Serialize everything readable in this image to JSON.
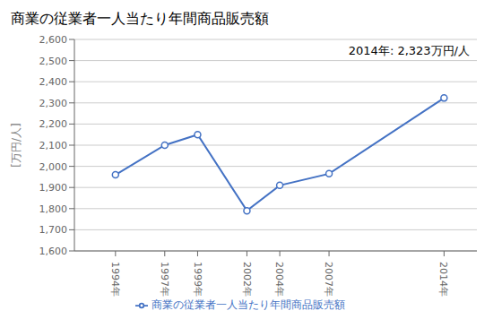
{
  "chart_data": {
    "type": "line",
    "title": "商業の従業者一人当たり年間商品販売額",
    "ylabel": "[万円/人]",
    "annotation": "2014年: 2,323万円/人",
    "x": [
      1994,
      1997,
      1999,
      2002,
      2004,
      2007,
      2014
    ],
    "series": [
      {
        "name": "商業の従業者一人当たり年間商品販売額",
        "color": "#4472C4",
        "marker": "o",
        "values": [
          1960,
          2100,
          2150,
          1790,
          1910,
          1965,
          2323
        ]
      }
    ],
    "xlim": [
      1991.5,
      2016
    ],
    "xticks": [
      {
        "value": 1994,
        "label": "1994年"
      },
      {
        "value": 1997,
        "label": "1997年"
      },
      {
        "value": 1999,
        "label": "1999年"
      },
      {
        "value": 2002,
        "label": "2002年"
      },
      {
        "value": 2004,
        "label": "2004年"
      },
      {
        "value": 2007,
        "label": "2007年"
      },
      {
        "value": 2014,
        "label": "2014年"
      }
    ],
    "ylim": [
      1600,
      2600
    ],
    "yticks": [
      {
        "value": 1600,
        "label": "1,600"
      },
      {
        "value": 1700,
        "label": "1,700"
      },
      {
        "value": 1800,
        "label": "1,800"
      },
      {
        "value": 1900,
        "label": "1,900"
      },
      {
        "value": 2000,
        "label": "2,000"
      },
      {
        "value": 2100,
        "label": "2,100"
      },
      {
        "value": 2200,
        "label": "2,200"
      },
      {
        "value": 2300,
        "label": "2,300"
      },
      {
        "value": 2400,
        "label": "2,400"
      },
      {
        "value": 2500,
        "label": "2,500"
      },
      {
        "value": 2600,
        "label": "2,600"
      }
    ],
    "grid": true,
    "legend": "bottom"
  }
}
